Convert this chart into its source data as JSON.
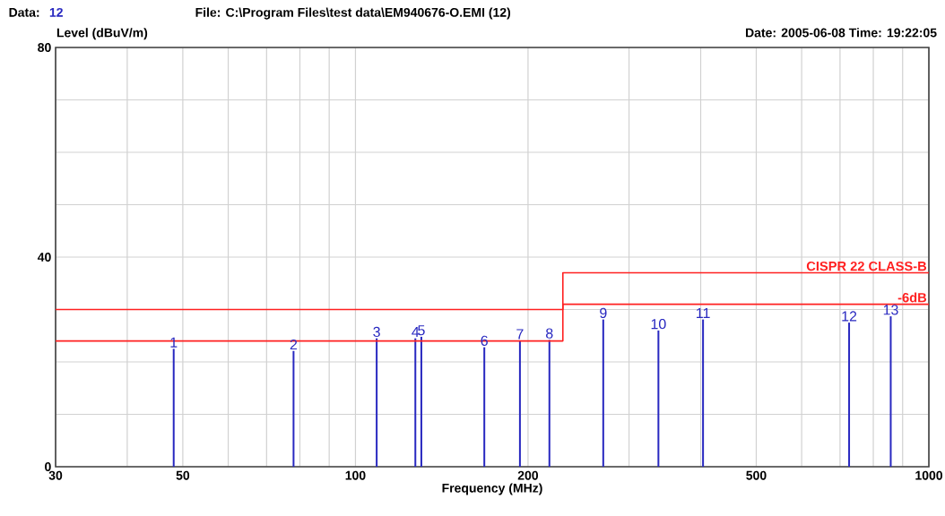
{
  "chart_data": {
    "type": "bar",
    "log": "x",
    "grid": true,
    "xlabel": "Frequency (MHz)",
    "ylabel": "Level (dBuV/m)",
    "xlim": [
      30,
      1000
    ],
    "ylim": [
      0,
      80
    ],
    "xticks": [
      30,
      {
        "value": 40,
        "label": null
      },
      50,
      {
        "value": 60,
        "label": null
      },
      {
        "value": 70,
        "label": null
      },
      {
        "value": 80,
        "label": null
      },
      {
        "value": 90,
        "label": null
      },
      100,
      200,
      {
        "value": 300,
        "label": null
      },
      {
        "value": 400,
        "label": null
      },
      500,
      {
        "value": 600,
        "label": null
      },
      {
        "value": 700,
        "label": null
      },
      {
        "value": 800,
        "label": null
      },
      {
        "value": 900,
        "label": null
      },
      1000
    ],
    "yticks": [
      0,
      {
        "value": 10,
        "label": null
      },
      {
        "value": 20,
        "label": null
      },
      {
        "value": 30,
        "label": null
      },
      40,
      {
        "value": 50,
        "label": null
      },
      {
        "value": 60,
        "label": null
      },
      {
        "value": 70,
        "label": null
      },
      80
    ],
    "series": [
      {
        "color": "#2828c0",
        "x": [
          48.2,
          78.0,
          108.9,
          127.2,
          130.3,
          167.8,
          193.6,
          217.9,
          270.5,
          337.6,
          403.8,
          726,
          858
        ],
        "values": [
          22.5,
          22.1,
          24.5,
          24.5,
          24.8,
          22.8,
          24.1,
          24.2,
          28.1,
          26.0,
          28.1,
          27.5,
          28.7
        ]
      },
      {
        "type": "line",
        "name": "CISPR 22 CLASS-B",
        "color": "#ff2020",
        "x": [
          30,
          230,
          230,
          1000
        ],
        "values": [
          30,
          30,
          37,
          37
        ]
      },
      {
        "type": "line",
        "name": "-6dB",
        "color": "#ff2020",
        "x": [
          30,
          230,
          230,
          1000
        ],
        "values": [
          24,
          24,
          31,
          31
        ]
      }
    ],
    "annotations": [
      "Data:",
      "12",
      "File: C:\\Program Files\\test data\\EM940676-O.EMI  (12)",
      "Date: 2005-06-08  Time: 19:22:05",
      {
        "text": "1",
        "x": 48.2,
        "y": 22.5
      },
      {
        "text": "2",
        "x": 78.0,
        "y": 22.1
      },
      {
        "text": "3",
        "x": 108.9,
        "y": 24.5
      },
      {
        "text": "4",
        "x": 127.2,
        "y": 24.5
      },
      {
        "text": "5",
        "x": 130.3,
        "y": 24.8
      },
      {
        "text": "6",
        "x": 167.8,
        "y": 22.8
      },
      {
        "text": "7",
        "x": 193.6,
        "y": 24.1
      },
      {
        "text": "8",
        "x": 217.9,
        "y": 24.2
      },
      {
        "text": "9",
        "x": 270.5,
        "y": 28.1
      },
      {
        "text": "10",
        "x": 337.6,
        "y": 26.0
      },
      {
        "text": "11",
        "x": 403.8,
        "y": 28.1
      },
      {
        "text": "12",
        "x": 726,
        "y": 27.5
      },
      {
        "text": "13",
        "x": 858,
        "y": 28.7
      }
    ]
  }
}
